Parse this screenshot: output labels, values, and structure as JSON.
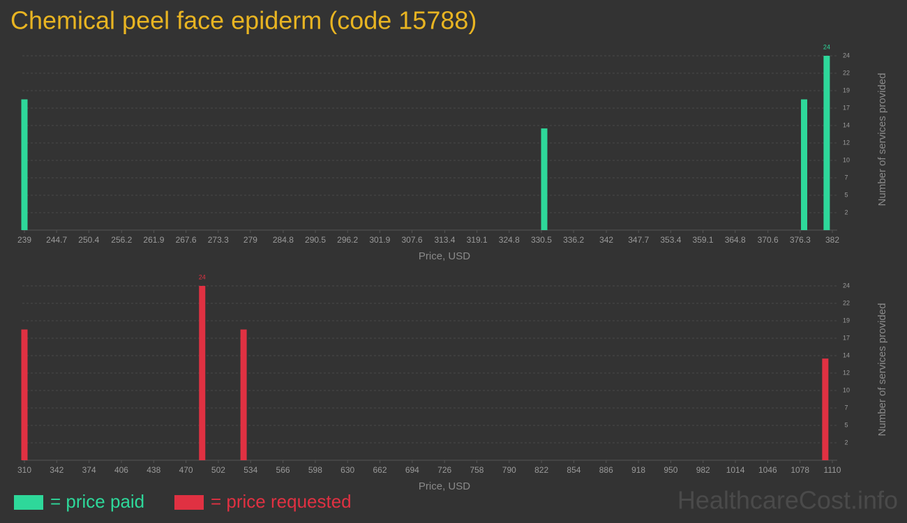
{
  "title": "Chemical peel face epiderm (code 15788)",
  "watermark": "HealthcareCost.info",
  "chart_data": [
    {
      "type": "bar",
      "x_label": "Price, USD",
      "y_label": "Number of services provided",
      "series": [
        {
          "name": "= price paid",
          "color": "#2ed89a",
          "x": [
            239,
            331,
            377,
            381
          ],
          "values": [
            18,
            14,
            18,
            24
          ]
        }
      ],
      "xlim": [
        239,
        382
      ],
      "xticks": [
        239,
        244.7,
        250.4,
        256.2,
        261.9,
        267.6,
        273.3,
        279,
        284.8,
        290.5,
        296.2,
        301.9,
        307.6,
        313.4,
        319.1,
        324.8,
        330.5,
        336.2,
        342,
        347.7,
        353.4,
        359.1,
        364.8,
        370.6,
        376.3,
        382
      ],
      "ylim": [
        0,
        24
      ],
      "yticks": [
        {
          "value": 2.4,
          "label": "2"
        },
        {
          "value": 4.8,
          "label": "5"
        },
        {
          "value": 7.2,
          "label": "7"
        },
        {
          "value": 9.6,
          "label": "10"
        },
        {
          "value": 12,
          "label": "12"
        },
        {
          "value": 14.4,
          "label": "14"
        },
        {
          "value": 16.8,
          "label": "17"
        },
        {
          "value": 19.2,
          "label": "19"
        },
        {
          "value": 21.6,
          "label": "22"
        },
        24
      ],
      "grid": true
    },
    {
      "type": "bar",
      "x_label": "Price, USD",
      "y_label": "Number of services provided",
      "series": [
        {
          "name": "= price requested",
          "color": "#e03142",
          "x": [
            310,
            486,
            527,
            1103
          ],
          "values": [
            18,
            24,
            18,
            14
          ]
        }
      ],
      "xlim": [
        310,
        1110
      ],
      "xticks": [
        310,
        342,
        374,
        406,
        438,
        470,
        502,
        534,
        566,
        598,
        630,
        662,
        694,
        726,
        758,
        790,
        822,
        854,
        886,
        918,
        950,
        982,
        1014,
        1046,
        1078,
        1110
      ],
      "ylim": [
        0,
        24
      ],
      "yticks": [
        {
          "value": 2.4,
          "label": "2"
        },
        {
          "value": 4.8,
          "label": "5"
        },
        {
          "value": 7.2,
          "label": "7"
        },
        {
          "value": 9.6,
          "label": "10"
        },
        {
          "value": 12,
          "label": "12"
        },
        {
          "value": 14.4,
          "label": "14"
        },
        {
          "value": 16.8,
          "label": "17"
        },
        {
          "value": 19.2,
          "label": "19"
        },
        {
          "value": 21.6,
          "label": "22"
        },
        24
      ],
      "grid": true
    }
  ]
}
